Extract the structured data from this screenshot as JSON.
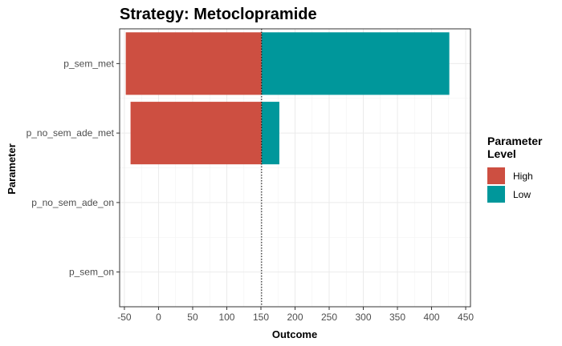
{
  "chart_data": {
    "type": "bar",
    "orientation": "horizontal",
    "title": "Strategy: Metoclopramide",
    "xlabel": "Outcome",
    "ylabel": "Parameter",
    "categories": [
      "p_sem_met",
      "p_no_sem_ade_met",
      "p_no_sem_ade_on",
      "p_sem_on"
    ],
    "baseline": 151,
    "xlim": [
      -57,
      457
    ],
    "x_ticks": [
      -50,
      0,
      50,
      100,
      150,
      200,
      250,
      300,
      350,
      400,
      450
    ],
    "series": [
      {
        "name": "High",
        "color": "#CD4F41",
        "values": [
          -48,
          -41,
          null,
          null
        ]
      },
      {
        "name": "Low",
        "color": "#00979B",
        "values": [
          426,
          177,
          null,
          null
        ]
      }
    ],
    "grid": true,
    "legend": {
      "title": [
        "Parameter",
        "Level"
      ],
      "position": "right"
    }
  }
}
